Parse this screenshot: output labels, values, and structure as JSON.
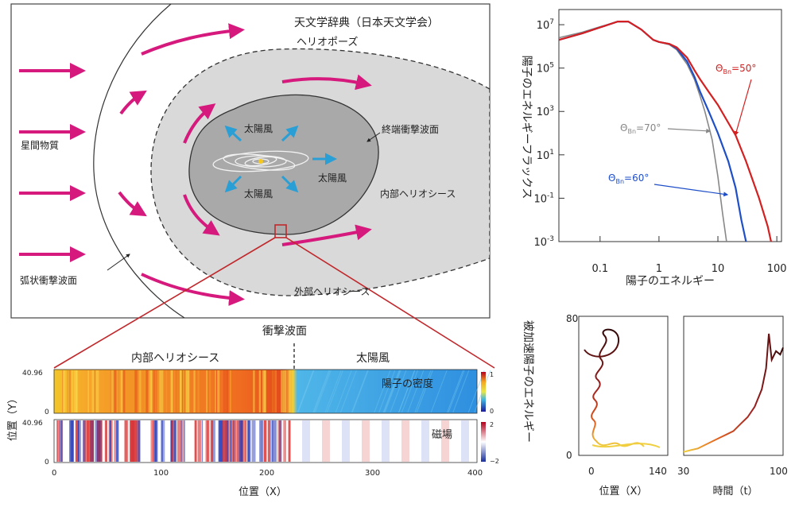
{
  "heliosphere": {
    "source": "天文学辞典（日本天文学会）",
    "heliopause": "ヘリオポーズ",
    "interstellar_matter": "星間物質",
    "bow_shock": "弧状衝撃波面",
    "termination_shock": "終端衝撃波面",
    "solar_wind_1": "太陽風",
    "solar_wind_2": "太陽風",
    "solar_wind_3": "太陽風",
    "inner_heliosheath": "内部ヘリオシース",
    "outer_heliosheath": "外部ヘリオシース"
  },
  "simulation": {
    "shock_label": "衝撃波面",
    "left_region": "内部ヘリオシース",
    "right_region": "太陽風",
    "density_label": "陽子の密度",
    "field_label": "磁場",
    "ylabel": "位置（Y）",
    "xlabel": "位置（X）",
    "y_top": "40.96",
    "y_bottom": "0",
    "x_ticks": [
      "0",
      "100",
      "200",
      "300",
      "400"
    ],
    "density_cbar": [
      "1",
      "0"
    ],
    "field_cbar": [
      "2",
      "−2"
    ]
  },
  "chart_data": [
    {
      "type": "line",
      "xlabel": "陽子のエネルギー",
      "ylabel": "陽子のエネルギーフラックス",
      "xscale": "log",
      "yscale": "log",
      "xlim": [
        0.02,
        120
      ],
      "ylim": [
        0.001,
        50000000
      ],
      "x_ticks": [
        "0.1",
        "1",
        "10",
        "100"
      ],
      "y_ticks": [
        "10^7",
        "10^5",
        "10^3",
        "10^1",
        "10^-1",
        "10^-3"
      ],
      "series": [
        {
          "name": "Θ_Bn=70°",
          "color": "#888888",
          "x": [
            0.02,
            0.05,
            0.1,
            0.2,
            0.3,
            0.5,
            0.8,
            1,
            1.5,
            2,
            3,
            4,
            5,
            6,
            8,
            10,
            12,
            14
          ],
          "y": [
            2500000,
            4500000,
            8000000,
            14000000,
            14000000,
            6000000,
            2000000,
            1600000,
            1200000,
            700000,
            150000,
            30000,
            5000,
            1000,
            50,
            1,
            0.02,
            0.001
          ]
        },
        {
          "name": "Θ_Bn=60°",
          "color": "#1f4fc8",
          "x": [
            0.02,
            0.05,
            0.1,
            0.2,
            0.3,
            0.5,
            0.8,
            1,
            1.5,
            2,
            3,
            4,
            5,
            7,
            10,
            15,
            20,
            25,
            30
          ],
          "y": [
            2000000,
            4000000,
            7500000,
            14000000,
            14000000,
            6000000,
            2000000,
            1600000,
            1300000,
            800000,
            200000,
            40000,
            8000,
            1000,
            100,
            5,
            0.3,
            0.01,
            0.001
          ]
        },
        {
          "name": "Θ_Bn=50°",
          "color": "#d42020",
          "x": [
            0.02,
            0.05,
            0.1,
            0.2,
            0.3,
            0.5,
            0.8,
            1,
            1.5,
            2,
            3,
            4,
            5,
            7,
            10,
            15,
            20,
            30,
            50,
            70,
            80
          ],
          "y": [
            2000000,
            4000000,
            7500000,
            14000000,
            14000000,
            6000000,
            2000000,
            1600000,
            1300000,
            900000,
            300000,
            80000,
            30000,
            8000,
            2000,
            300,
            80,
            5,
            0.1,
            0.005,
            0.001
          ]
        }
      ],
      "annotations": [
        "Θ_Bn=50°",
        "Θ_Bn=70°",
        "Θ_Bn=60°"
      ]
    },
    {
      "type": "line",
      "xlabel": "位置（X）",
      "ylabel": "被加速陽子のエネルギー",
      "xlim": [
        -10,
        140
      ],
      "ylim": [
        0,
        80
      ],
      "x_ticks": [
        "0",
        "140"
      ],
      "y_ticks": [
        "80",
        "0"
      ]
    },
    {
      "type": "line",
      "xlabel": "時間（t）",
      "xlim": [
        30,
        100
      ],
      "ylim": [
        0,
        80
      ],
      "x_ticks": [
        "30",
        "100"
      ],
      "series": [
        {
          "name": "",
          "x": [
            30,
            35,
            40,
            45,
            50,
            55,
            60,
            65,
            70,
            75,
            80,
            85,
            88,
            90,
            92,
            95,
            98,
            100
          ],
          "y": [
            2,
            3,
            4,
            6,
            8,
            10,
            12,
            14,
            18,
            22,
            28,
            38,
            50,
            70,
            55,
            60,
            58,
            62
          ]
        }
      ]
    }
  ],
  "colors": {
    "arrow": "#d6197c",
    "shock_red": "#c0282c",
    "light_gray": "#d9d9d9",
    "inner_gray": "#a9a9a9",
    "wind_blue": "#2a9fd6"
  }
}
